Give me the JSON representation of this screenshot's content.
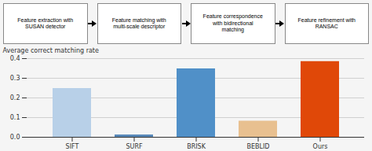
{
  "chart_data": {
    "type": "bar",
    "annotations": [
      "Feature extraction with\nSUSAN detector",
      "Feature matching with\nmulti-scale descriptor",
      "Feature correspondence\nwith bidirectional\nmatching",
      "Feature refinement with\nRANSAC"
    ],
    "categories": [
      "SIFT",
      "SURF",
      "BRISK",
      "BEBLID",
      "Ours"
    ],
    "values": [
      0.248,
      0.012,
      0.348,
      0.082,
      0.385
    ],
    "colors": [
      "#b8d0e8",
      "#5888b8",
      "#5090c8",
      "#e8c090",
      "#e04808"
    ],
    "ylabel": "Average correct matching rate",
    "ylim": [
      0,
      0.4
    ],
    "yticks": [
      {
        "value": 0.0,
        "label": "0.0"
      },
      0.1,
      0.2,
      0.3,
      0.4
    ],
    "grid": true
  }
}
